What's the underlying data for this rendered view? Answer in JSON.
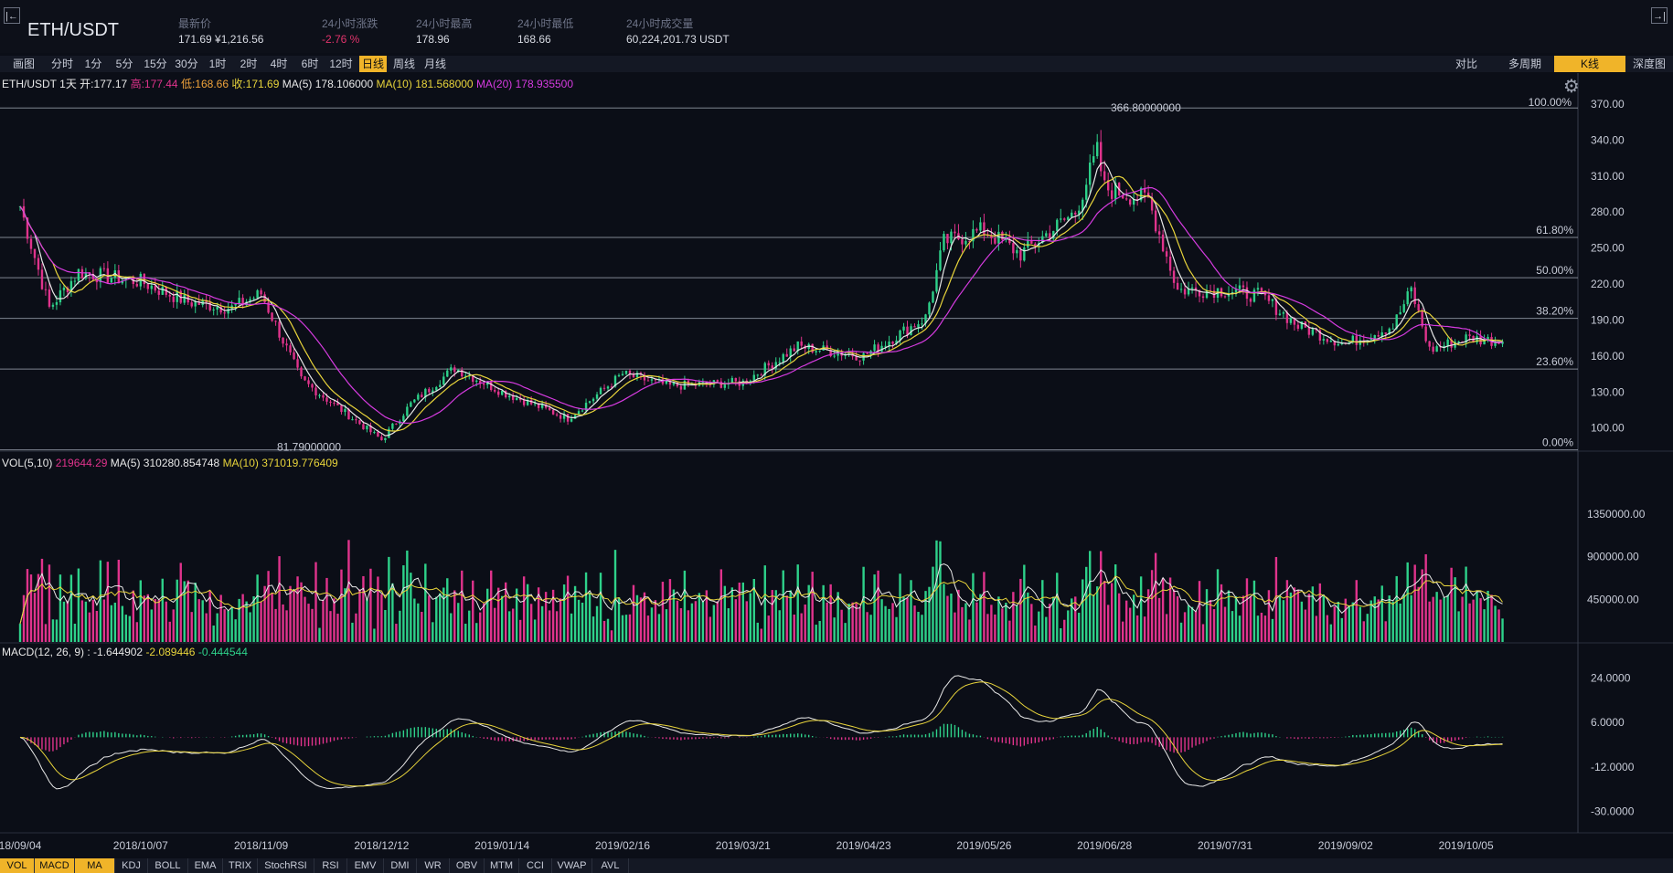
{
  "header": {
    "pair": "ETH/USDT",
    "collapse_left": "|←",
    "collapse_right": "→|",
    "stats": [
      {
        "label": "最新价",
        "value": "171.69 ¥1,216.56"
      },
      {
        "label": "24小时涨跌",
        "value": "-2.76 %"
      },
      {
        "label": "24小时最高",
        "value": "178.96"
      },
      {
        "label": "24小时最低",
        "value": "168.66"
      },
      {
        "label": "24小时成交量",
        "value": "60,224,201.73 USDT"
      }
    ]
  },
  "toolbar": {
    "timeframes": [
      "画图",
      "分时",
      "1分",
      "5分",
      "15分",
      "30分",
      "1时",
      "2时",
      "4时",
      "6时",
      "12时",
      "日线",
      "周线",
      "月线"
    ],
    "active_timeframe": "日线",
    "right_tabs": [
      "对比",
      "多周期",
      "K线",
      "深度图"
    ],
    "active_right_tab": "K线"
  },
  "price_info": {
    "symbol": "ETH/USDT",
    "period": "1天",
    "open_label": "开:",
    "open": "177.17",
    "high_label": "高:",
    "high": "177.44",
    "low_label": "低:",
    "low": "168.66",
    "close_label": "收:",
    "close": "171.69",
    "ma5_label": "MA(5)",
    "ma5": "178.106000",
    "ma10_label": "MA(10)",
    "ma10": "181.568000",
    "ma20_label": "MA(20)",
    "ma20": "178.935500"
  },
  "vol_info": {
    "label": "VOL(5,10)",
    "value": "219644.29",
    "ma5_label": "MA(5)",
    "ma5": "310280.854748",
    "ma10_label": "MA(10)",
    "ma10": "371019.776409"
  },
  "macd_info": {
    "label": "MACD(12, 26, 9) :",
    "dif": "-1.644902",
    "dea": "-2.089446",
    "macd": "-0.444544"
  },
  "colors": {
    "up": "#2ed18a",
    "down": "#e0338c",
    "ma5": "#e8e8e8",
    "ma10": "#e8d43b",
    "ma20": "#d63be0",
    "accent": "#f0b429"
  },
  "fib": {
    "levels": [
      "100.00%",
      "61.80%",
      "50.00%",
      "38.20%",
      "23.60%",
      "0.00%"
    ],
    "high_label": "366.80000000",
    "low_label": "81.79000000"
  },
  "chart_data": [
    {
      "type": "candlestick",
      "title": "ETH/USDT 1天",
      "price_axis": [
        "370.00",
        "340.00",
        "310.00",
        "280.00",
        "250.00",
        "220.00",
        "190.00",
        "160.00",
        "130.00",
        "100.00"
      ],
      "ylim": [
        83,
        370
      ],
      "fib_levels_price": [
        366.8,
        258.9,
        225.3,
        191.4,
        149.1,
        81.79
      ],
      "date_axis": [
        "18/09/04",
        "2018/10/07",
        "2018/11/09",
        "2018/12/12",
        "2019/01/14",
        "2019/02/16",
        "2019/03/21",
        "2019/04/23",
        "2019/05/26",
        "2019/06/28",
        "2019/07/31",
        "2019/09/02",
        "2019/10/05"
      ],
      "close_path": [
        {
          "date": "2018/09/04",
          "close": 285
        },
        {
          "date": "2018/09/12",
          "close": 200
        },
        {
          "date": "2018/09/20",
          "close": 230
        },
        {
          "date": "2018/10/07",
          "close": 222
        },
        {
          "date": "2018/10/20",
          "close": 205
        },
        {
          "date": "2018/11/01",
          "close": 200
        },
        {
          "date": "2018/11/09",
          "close": 212
        },
        {
          "date": "2018/11/20",
          "close": 140
        },
        {
          "date": "2018/12/01",
          "close": 115
        },
        {
          "date": "2018/12/12",
          "close": 90
        },
        {
          "date": "2018/12/20",
          "close": 120
        },
        {
          "date": "2019/01/01",
          "close": 150
        },
        {
          "date": "2019/01/14",
          "close": 130
        },
        {
          "date": "2019/02/01",
          "close": 108
        },
        {
          "date": "2019/02/16",
          "close": 145
        },
        {
          "date": "2019/03/01",
          "close": 135
        },
        {
          "date": "2019/03/21",
          "close": 138
        },
        {
          "date": "2019/04/05",
          "close": 168
        },
        {
          "date": "2019/04/23",
          "close": 160
        },
        {
          "date": "2019/05/10",
          "close": 192
        },
        {
          "date": "2019/05/15",
          "close": 255
        },
        {
          "date": "2019/05/26",
          "close": 265
        },
        {
          "date": "2019/06/05",
          "close": 245
        },
        {
          "date": "2019/06/20",
          "close": 280
        },
        {
          "date": "2019/06/26",
          "close": 330
        },
        {
          "date": "2019/06/28",
          "close": 300
        },
        {
          "date": "2019/07/10",
          "close": 290
        },
        {
          "date": "2019/07/18",
          "close": 215
        },
        {
          "date": "2019/07/31",
          "close": 215
        },
        {
          "date": "2019/08/10",
          "close": 210
        },
        {
          "date": "2019/08/20",
          "close": 185
        },
        {
          "date": "2019/09/02",
          "close": 170
        },
        {
          "date": "2019/09/15",
          "close": 185
        },
        {
          "date": "2019/09/20",
          "close": 215
        },
        {
          "date": "2019/09/25",
          "close": 165
        },
        {
          "date": "2019/10/05",
          "close": 175
        },
        {
          "date": "2019/10/15",
          "close": 172
        }
      ]
    },
    {
      "type": "bar",
      "title": "VOL(5,10)",
      "y_axis": [
        "1350000.00",
        "900000.00",
        "450000.00"
      ],
      "ylim": [
        0,
        1800000
      ]
    },
    {
      "type": "bar",
      "title": "MACD(12, 26, 9)",
      "y_axis": [
        "24.0000",
        "6.0000",
        "-12.0000",
        "-30.0000"
      ],
      "ylim": [
        -36,
        30
      ]
    }
  ],
  "indicator_tabs": [
    "VOL",
    "MACD",
    "MA",
    "KDJ",
    "BOLL",
    "EMA",
    "TRIX",
    "StochRSI",
    "RSI",
    "EMV",
    "DMI",
    "WR",
    "OBV",
    "MTM",
    "CCI",
    "VWAP",
    "AVL"
  ],
  "active_indicators": [
    "VOL",
    "MACD",
    "MA"
  ]
}
